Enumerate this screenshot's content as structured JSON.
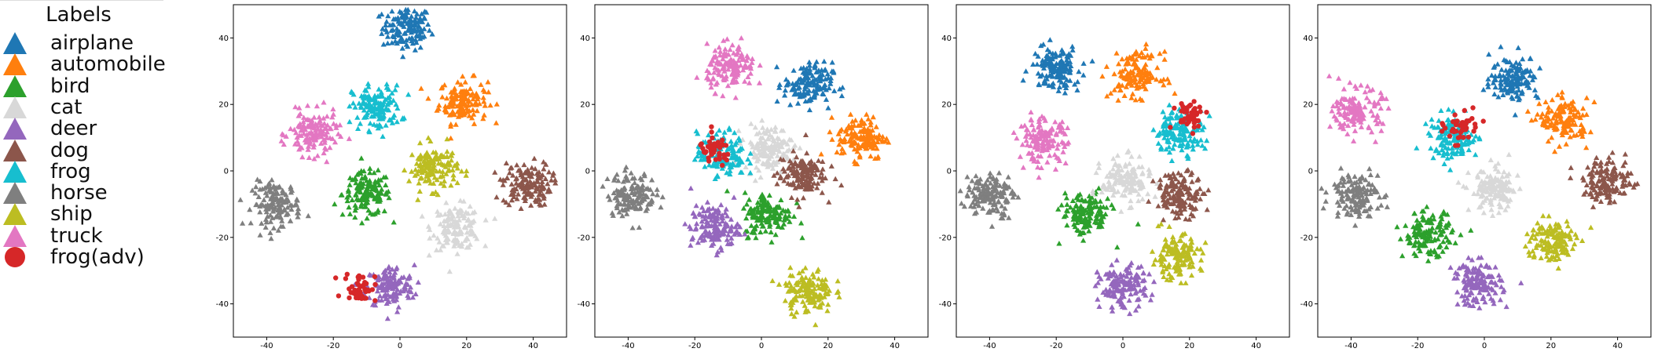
{
  "legend": {
    "title": "Labels",
    "items": [
      {
        "label": "airplane",
        "color": "#1f77b4",
        "marker": "triangle"
      },
      {
        "label": "automobile",
        "color": "#ff7f0e",
        "marker": "triangle"
      },
      {
        "label": "bird",
        "color": "#2ca02c",
        "marker": "triangle"
      },
      {
        "label": "cat",
        "color": "#d8d8d8",
        "marker": "triangle"
      },
      {
        "label": "deer",
        "color": "#9467bd",
        "marker": "triangle"
      },
      {
        "label": "dog",
        "color": "#8c564b",
        "marker": "triangle"
      },
      {
        "label": "frog",
        "color": "#17becf",
        "marker": "triangle"
      },
      {
        "label": "horse",
        "color": "#7f7f7f",
        "marker": "triangle"
      },
      {
        "label": "ship",
        "color": "#bcbd22",
        "marker": "triangle"
      },
      {
        "label": "truck",
        "color": "#e377c2",
        "marker": "triangle"
      },
      {
        "label": "frog(adv)",
        "color": "#d62728",
        "marker": "circle"
      }
    ]
  },
  "chart_data": [
    {
      "type": "scatter",
      "xlim": [
        -50,
        50
      ],
      "ylim": [
        -50,
        50
      ],
      "xticks": [
        -40,
        -20,
        0,
        20,
        40
      ],
      "yticks": [
        -40,
        -20,
        0,
        20,
        40
      ],
      "grid": false,
      "clusters": [
        {
          "series": "airplane",
          "x": 2,
          "y": 43
        },
        {
          "series": "automobile",
          "x": 19,
          "y": 21
        },
        {
          "series": "bird",
          "x": -10,
          "y": -7
        },
        {
          "series": "cat",
          "x": 17,
          "y": -17
        },
        {
          "series": "deer",
          "x": -3,
          "y": -35
        },
        {
          "series": "dog",
          "x": 38,
          "y": -4
        },
        {
          "series": "frog",
          "x": -7,
          "y": 19
        },
        {
          "series": "horse",
          "x": -37,
          "y": -10
        },
        {
          "series": "ship",
          "x": 10,
          "y": 1
        },
        {
          "series": "truck",
          "x": -26,
          "y": 11
        },
        {
          "series": "frog(adv)",
          "x": -12,
          "y": -35
        }
      ]
    },
    {
      "type": "scatter",
      "xlim": [
        -50,
        50
      ],
      "ylim": [
        -50,
        50
      ],
      "xticks": [
        -40,
        -20,
        0,
        20,
        40
      ],
      "yticks": [
        -40,
        -20,
        0,
        20,
        40
      ],
      "grid": false,
      "clusters": [
        {
          "series": "airplane",
          "x": 14,
          "y": 26
        },
        {
          "series": "automobile",
          "x": 30,
          "y": 10
        },
        {
          "series": "bird",
          "x": 2,
          "y": -13
        },
        {
          "series": "cat",
          "x": 2,
          "y": 7
        },
        {
          "series": "deer",
          "x": -14,
          "y": -17
        },
        {
          "series": "dog",
          "x": 12,
          "y": -1
        },
        {
          "series": "frog",
          "x": -12,
          "y": 5
        },
        {
          "series": "horse",
          "x": -39,
          "y": -7
        },
        {
          "series": "ship",
          "x": 14,
          "y": -36
        },
        {
          "series": "truck",
          "x": -9,
          "y": 31
        },
        {
          "series": "frog(adv)",
          "x": -14,
          "y": 6
        }
      ]
    },
    {
      "type": "scatter",
      "xlim": [
        -50,
        50
      ],
      "ylim": [
        -50,
        50
      ],
      "xticks": [
        -40,
        -20,
        0,
        20,
        40
      ],
      "yticks": [
        -40,
        -20,
        0,
        20,
        40
      ],
      "grid": false,
      "clusters": [
        {
          "series": "airplane",
          "x": -20,
          "y": 31
        },
        {
          "series": "automobile",
          "x": 4,
          "y": 29
        },
        {
          "series": "bird",
          "x": -11,
          "y": -13
        },
        {
          "series": "cat",
          "x": 1,
          "y": -3
        },
        {
          "series": "deer",
          "x": 0,
          "y": -35
        },
        {
          "series": "dog",
          "x": 17,
          "y": -7
        },
        {
          "series": "frog",
          "x": 17,
          "y": 12
        },
        {
          "series": "horse",
          "x": -40,
          "y": -7
        },
        {
          "series": "ship",
          "x": 16,
          "y": -26
        },
        {
          "series": "truck",
          "x": -24,
          "y": 9
        },
        {
          "series": "frog(adv)",
          "x": 20,
          "y": 17
        }
      ]
    },
    {
      "type": "scatter",
      "xlim": [
        -50,
        50
      ],
      "ylim": [
        -50,
        50
      ],
      "xticks": [
        -40,
        -20,
        0,
        20,
        40
      ],
      "yticks": [
        -40,
        -20,
        0,
        20,
        40
      ],
      "grid": false,
      "clusters": [
        {
          "series": "airplane",
          "x": 9,
          "y": 28
        },
        {
          "series": "automobile",
          "x": 24,
          "y": 15
        },
        {
          "series": "bird",
          "x": -17,
          "y": -19
        },
        {
          "series": "cat",
          "x": 3,
          "y": -6
        },
        {
          "series": "deer",
          "x": -2,
          "y": -34
        },
        {
          "series": "dog",
          "x": 37,
          "y": -3
        },
        {
          "series": "frog",
          "x": -9,
          "y": 10
        },
        {
          "series": "horse",
          "x": -39,
          "y": -7
        },
        {
          "series": "ship",
          "x": 20,
          "y": -21
        },
        {
          "series": "truck",
          "x": -38,
          "y": 18
        },
        {
          "series": "frog(adv)",
          "x": -7,
          "y": 13
        }
      ]
    }
  ]
}
